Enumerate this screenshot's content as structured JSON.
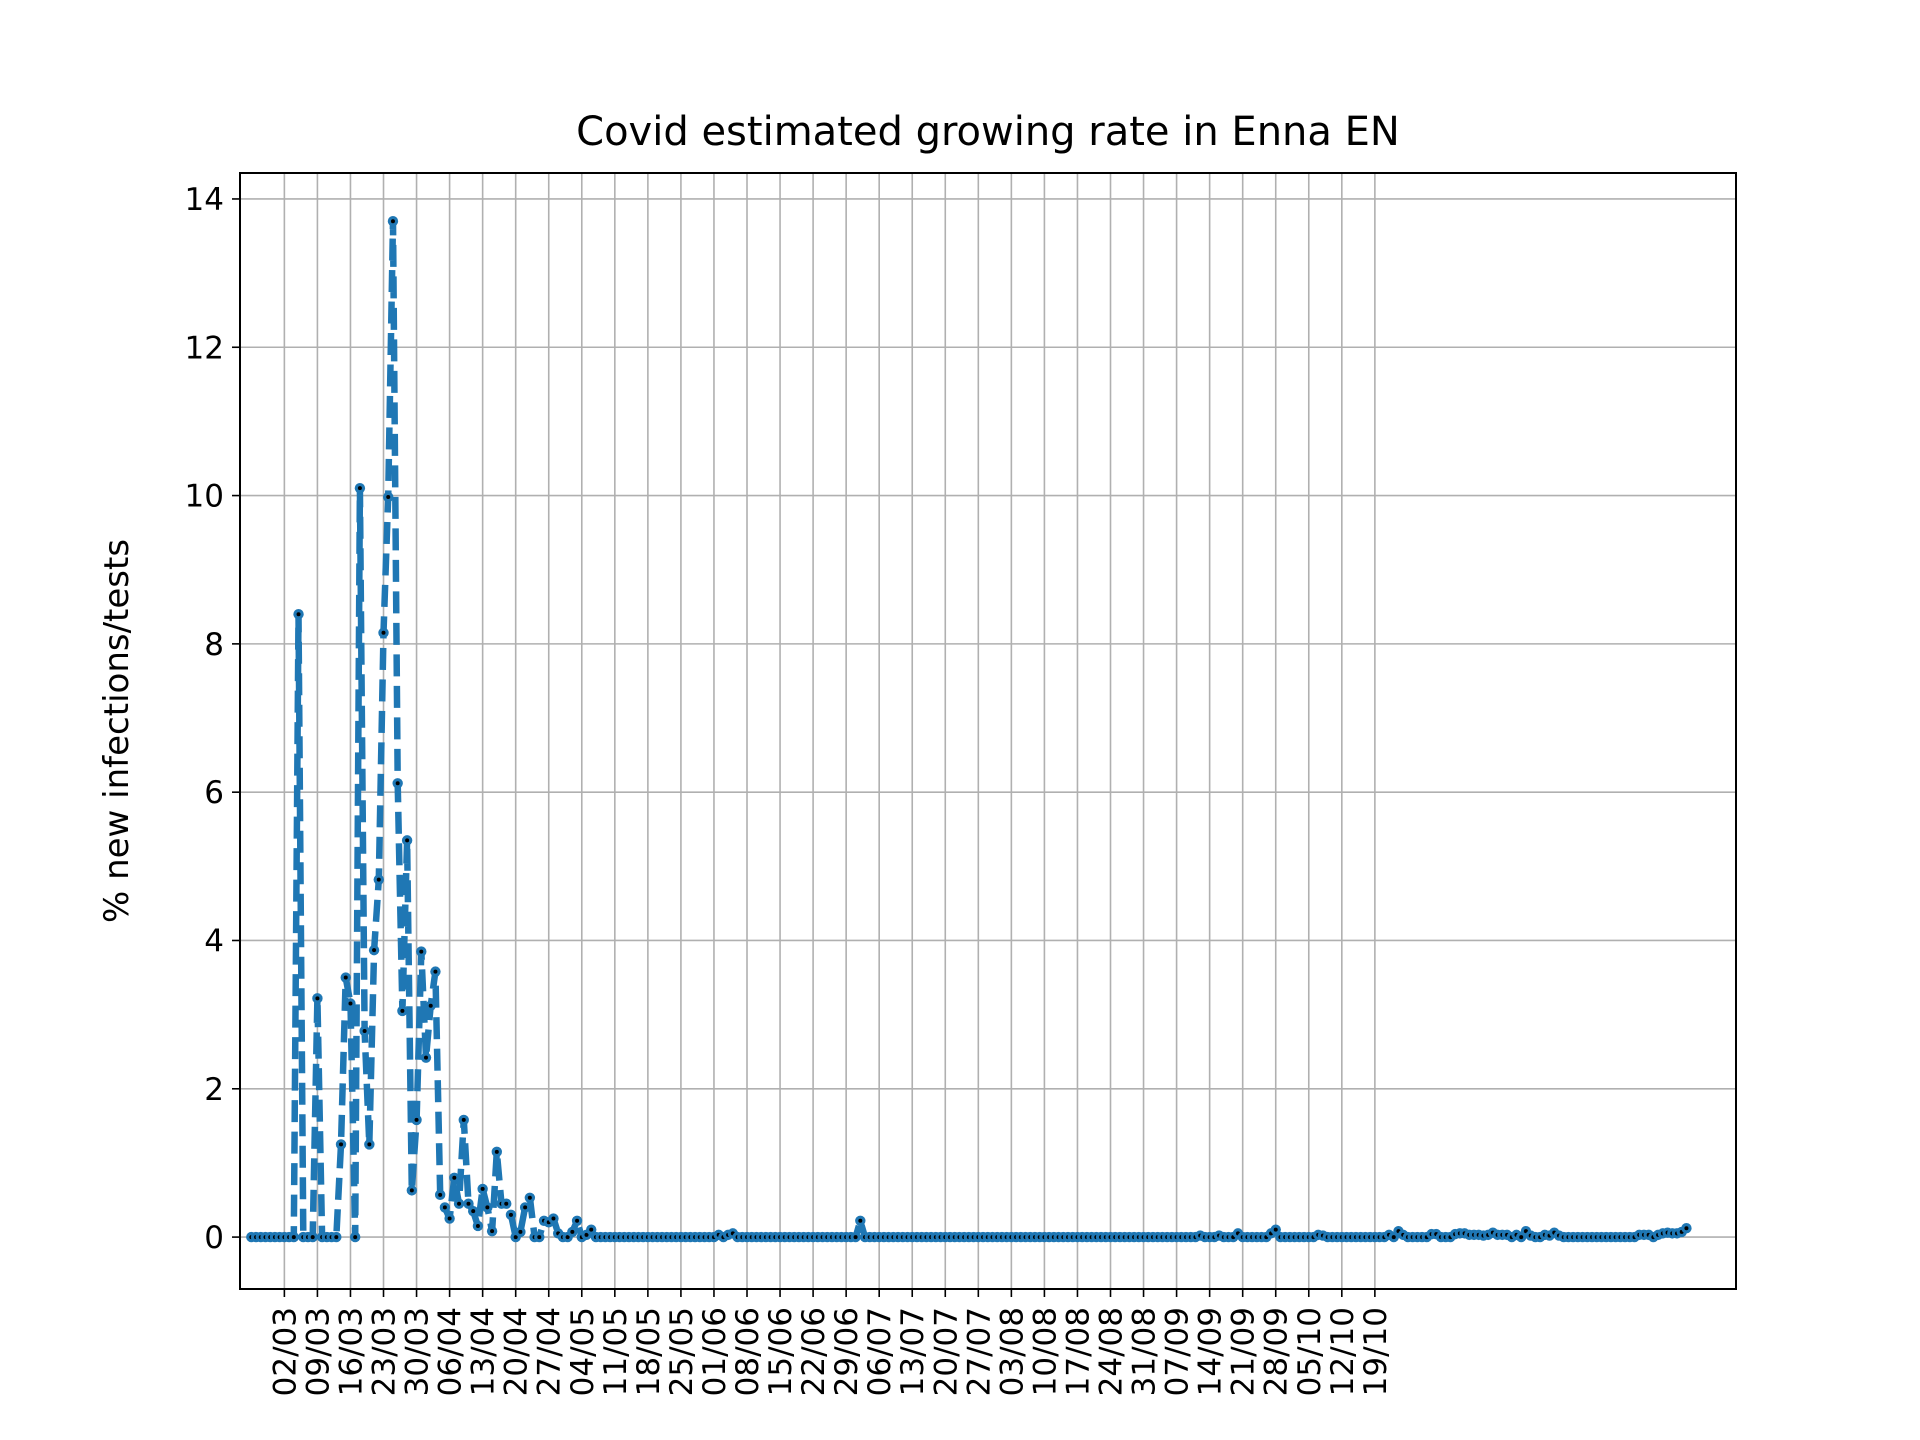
{
  "chart_data": {
    "type": "line",
    "title": "Covid estimated growing rate in Enna EN",
    "xlabel": "",
    "ylabel": "% new infections/tests",
    "ylim": [
      -0.7,
      14.35
    ],
    "yticks": [
      0,
      2,
      4,
      6,
      8,
      10,
      12,
      14
    ],
    "x_tick_labels": [
      "02/03",
      "09/03",
      "16/03",
      "23/03",
      "30/03",
      "06/04",
      "13/04",
      "20/04",
      "27/04",
      "04/05",
      "11/05",
      "18/05",
      "25/05",
      "01/06",
      "08/06",
      "15/06",
      "22/06",
      "29/06",
      "06/07",
      "13/07",
      "20/07",
      "27/07",
      "03/08",
      "10/08",
      "17/08",
      "24/08",
      "31/08",
      "07/09",
      "14/09",
      "21/09",
      "28/09",
      "05/10",
      "12/10",
      "19/10"
    ],
    "x_start_date": "24/02",
    "grid": true,
    "line_color": "#1f77b4",
    "marker_color": "#000000",
    "series": [
      {
        "values": [
          0,
          0,
          0,
          0,
          0,
          0,
          0,
          0,
          0,
          0,
          8.4,
          0,
          0,
          0,
          3.22,
          0,
          0,
          0,
          0,
          1.25,
          3.5,
          3.15,
          0,
          10.1,
          2.78,
          1.25,
          3.87,
          4.82,
          8.15,
          9.98,
          13.7,
          6.12,
          3.05,
          5.35,
          0.63,
          1.58,
          3.85,
          2.42,
          3.12,
          3.58,
          0.57,
          0.4,
          0.25,
          0.8,
          0.45,
          1.58,
          0.45,
          0.35,
          0.15,
          0.65,
          0.4,
          0.08,
          1.15,
          0.45,
          0.45,
          0.3,
          0,
          0.07,
          0.4,
          0.53,
          0,
          0,
          0.22,
          0.2,
          0.25,
          0.05,
          0,
          0,
          0.07,
          0.22,
          0,
          0.03,
          0.1,
          0,
          0,
          0,
          0,
          0,
          0,
          0,
          0,
          0,
          0,
          0,
          0,
          0,
          0,
          0,
          0,
          0,
          0,
          0,
          0,
          0,
          0,
          0,
          0,
          0,
          0,
          0.03,
          0,
          0.03,
          0.05,
          0,
          0,
          0,
          0,
          0,
          0,
          0,
          0,
          0,
          0,
          0,
          0,
          0,
          0,
          0,
          0,
          0,
          0,
          0,
          0,
          0,
          0,
          0,
          0,
          0,
          0,
          0.22,
          0,
          0,
          0,
          0,
          0,
          0,
          0,
          0,
          0,
          0,
          0,
          0,
          0,
          0,
          0,
          0,
          0,
          0,
          0,
          0,
          0,
          0,
          0,
          0,
          0,
          0,
          0,
          0,
          0,
          0,
          0,
          0,
          0,
          0,
          0,
          0,
          0,
          0,
          0,
          0,
          0,
          0,
          0,
          0,
          0,
          0,
          0,
          0,
          0,
          0,
          0,
          0,
          0,
          0,
          0,
          0,
          0,
          0,
          0,
          0,
          0,
          0,
          0,
          0,
          0,
          0,
          0,
          0,
          0,
          0,
          0,
          0.02,
          0,
          0,
          0,
          0.02,
          0,
          0,
          0,
          0.05,
          0,
          0,
          0,
          0,
          0,
          0,
          0.05,
          0.1,
          0,
          0,
          0,
          0,
          0,
          0,
          0,
          0,
          0.03,
          0.02,
          0,
          0,
          0,
          0,
          0,
          0,
          0,
          0,
          0,
          0,
          0,
          0,
          0,
          0.03,
          0,
          0.08,
          0.03,
          0,
          0,
          0,
          0,
          0,
          0.04,
          0.04,
          0,
          0,
          0,
          0.04,
          0.05,
          0.05,
          0.03,
          0.03,
          0.03,
          0.02,
          0.03,
          0.06,
          0.03,
          0.03,
          0.03,
          0,
          0.03,
          0,
          0.08,
          0.02,
          0,
          0,
          0.03,
          0.02,
          0.06,
          0.02,
          0,
          0,
          0,
          0,
          0,
          0,
          0,
          0,
          0,
          0,
          0,
          0,
          0,
          0,
          0,
          0,
          0.03,
          0.03,
          0.03,
          0,
          0.03,
          0.05,
          0.06,
          0.05,
          0.05,
          0.07,
          0.12
        ]
      }
    ]
  }
}
